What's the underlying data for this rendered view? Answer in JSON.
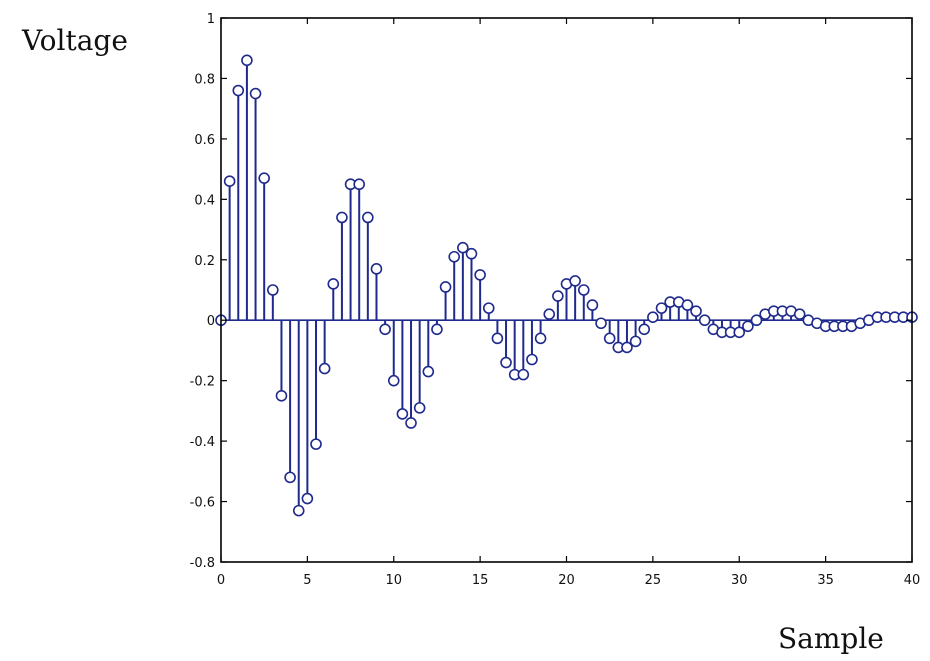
{
  "chart_data": {
    "type": "stem",
    "title": "",
    "xlabel": "Sample",
    "ylabel": "Voltage",
    "xlim": [
      0,
      40
    ],
    "ylim": [
      -0.8,
      1
    ],
    "xticks": [
      0,
      5,
      10,
      15,
      20,
      25,
      30,
      35,
      40
    ],
    "yticks": [
      -0.8,
      -0.6,
      -0.4,
      -0.2,
      0,
      0.2,
      0.4,
      0.6,
      0.8,
      1
    ],
    "ytick_labels": [
      "-0.8",
      "-0.6",
      "-0.4",
      "-0.2",
      "0",
      "0.2",
      "0.4",
      "0.6",
      "0.8",
      "1"
    ],
    "grid": false,
    "colors": {
      "stem": "#1f2a8c",
      "axes": "#000000"
    },
    "series": [
      {
        "name": "",
        "x": [
          0,
          0.5,
          1,
          1.5,
          2,
          2.5,
          3,
          3.5,
          4,
          4.5,
          5,
          5.5,
          6,
          6.5,
          7,
          7.5,
          8,
          8.5,
          9,
          9.5,
          10,
          10.5,
          11,
          11.5,
          12,
          12.5,
          13,
          13.5,
          14,
          14.5,
          15,
          15.5,
          16,
          16.5,
          17,
          17.5,
          18,
          18.5,
          19,
          19.5,
          20,
          20.5,
          21,
          21.5,
          22,
          22.5,
          23,
          23.5,
          24,
          24.5,
          25,
          25.5,
          26,
          26.5,
          27,
          27.5,
          28,
          28.5,
          29,
          29.5,
          30,
          30.5,
          31,
          31.5,
          32,
          32.5,
          33,
          33.5,
          34,
          34.5,
          35,
          35.5,
          36,
          36.5,
          37,
          37.5,
          38,
          38.5,
          39,
          39.5,
          40
        ],
        "y": [
          0,
          0.46,
          0.76,
          0.86,
          0.75,
          0.47,
          0.1,
          -0.25,
          -0.52,
          -0.63,
          -0.59,
          -0.41,
          -0.16,
          0.12,
          0.34,
          0.45,
          0.45,
          0.34,
          0.17,
          -0.03,
          -0.2,
          -0.31,
          -0.34,
          -0.29,
          -0.17,
          -0.03,
          0.11,
          0.21,
          0.24,
          0.22,
          0.15,
          0.04,
          -0.06,
          -0.14,
          -0.18,
          -0.18,
          -0.13,
          -0.06,
          0.02,
          0.08,
          0.12,
          0.13,
          0.1,
          0.05,
          -0.01,
          -0.06,
          -0.09,
          -0.09,
          -0.07,
          -0.03,
          0.01,
          0.04,
          0.06,
          0.06,
          0.05,
          0.03,
          0,
          -0.03,
          -0.04,
          -0.04,
          -0.04,
          -0.02,
          0,
          0.02,
          0.03,
          0.03,
          0.03,
          0.02,
          0,
          -0.01,
          -0.02,
          -0.02,
          -0.02,
          -0.02,
          -0.01,
          0,
          0.01,
          0.01,
          0.01,
          0.01,
          0.01
        ]
      }
    ]
  }
}
